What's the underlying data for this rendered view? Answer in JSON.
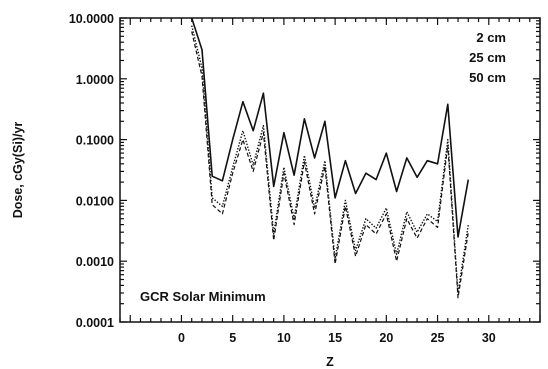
{
  "chart_data": {
    "type": "line",
    "ylabel": "Dose, cGy(Si)/yr",
    "xlabel": "Z",
    "annotation": "GCR Solar Minimum",
    "y_scale": "log",
    "ylim": [
      0.0001,
      10
    ],
    "xlim": [
      -6,
      35
    ],
    "x_ticks": [
      0,
      5,
      10,
      15,
      20,
      25,
      30
    ],
    "x_tick_labels": [
      "0",
      "5",
      "10",
      "15",
      "20",
      "25",
      "30"
    ],
    "y_ticks": [
      0.0001,
      0.001,
      0.01,
      0.1,
      1,
      10
    ],
    "y_tick_labels": [
      "0.0001",
      "0.0010",
      "0.0100",
      "0.1000",
      "1.0000",
      "10.0000"
    ],
    "grid": false,
    "legend_position": "top-right",
    "x": [
      1,
      2,
      3,
      4,
      5,
      6,
      7,
      8,
      9,
      10,
      11,
      12,
      13,
      14,
      15,
      16,
      17,
      18,
      19,
      20,
      21,
      22,
      23,
      24,
      25,
      26,
      27,
      28
    ],
    "series": [
      {
        "name": "2 cm",
        "style": "solid",
        "values": [
          10.0,
          3.0,
          0.025,
          0.021,
          0.1,
          0.42,
          0.14,
          0.58,
          0.017,
          0.13,
          0.026,
          0.22,
          0.05,
          0.2,
          0.011,
          0.045,
          0.013,
          0.028,
          0.022,
          0.06,
          0.014,
          0.05,
          0.024,
          0.045,
          0.04,
          0.38,
          0.0025,
          0.022
        ]
      },
      {
        "name": "25 cm",
        "style": "dotted",
        "values": [
          7.5,
          1.5,
          0.011,
          0.008,
          0.035,
          0.14,
          0.038,
          0.17,
          0.0028,
          0.035,
          0.005,
          0.055,
          0.0075,
          0.045,
          0.0011,
          0.01,
          0.0015,
          0.005,
          0.0035,
          0.0075,
          0.0013,
          0.0065,
          0.003,
          0.006,
          0.0045,
          0.1,
          0.0003,
          0.004
        ]
      },
      {
        "name": "50 cm",
        "style": "dashed",
        "values": [
          6.0,
          1.1,
          0.0085,
          0.006,
          0.028,
          0.1,
          0.03,
          0.13,
          0.0022,
          0.028,
          0.004,
          0.043,
          0.006,
          0.036,
          0.0009,
          0.008,
          0.0012,
          0.004,
          0.0028,
          0.006,
          0.001,
          0.005,
          0.0024,
          0.005,
          0.0036,
          0.08,
          0.00025,
          0.003
        ]
      }
    ]
  }
}
